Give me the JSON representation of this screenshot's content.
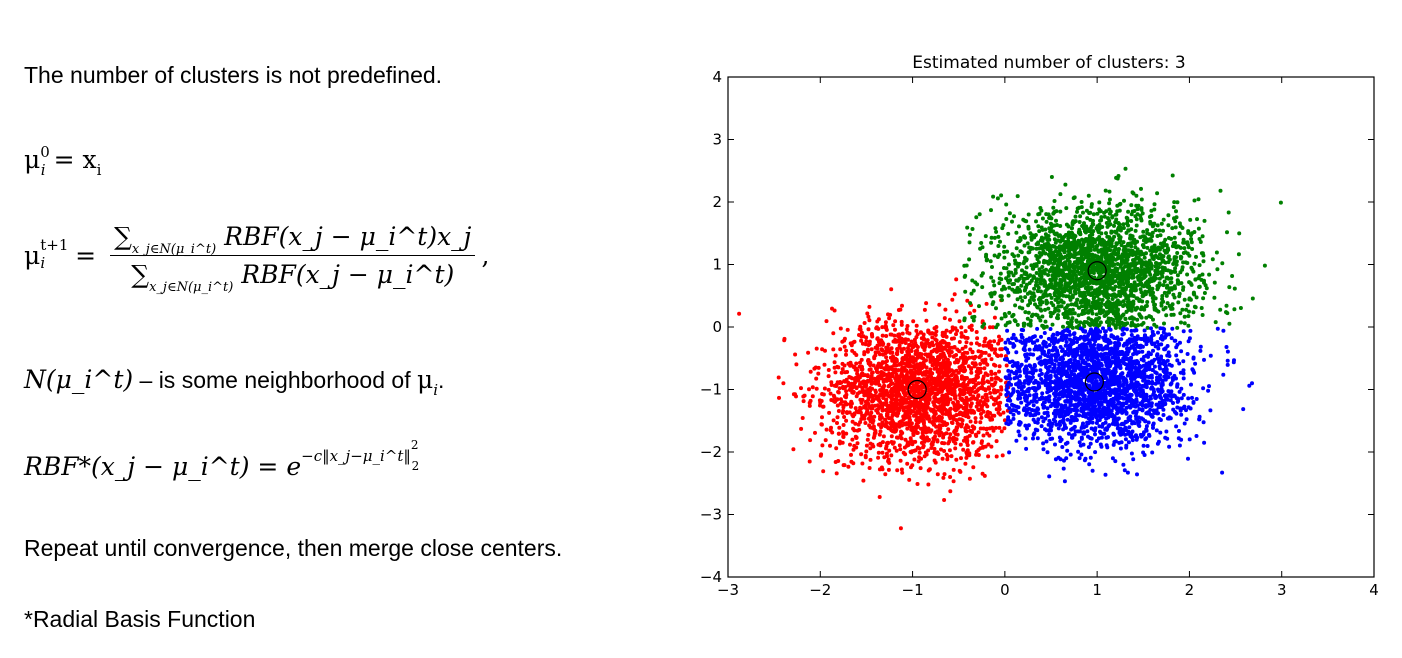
{
  "text": {
    "line1": "The number of clusters is not predefined.",
    "init": {
      "mu": "μ",
      "sub": "i",
      "sup": "0",
      "rhs": "= x",
      "rhs_sub": "i"
    },
    "update": {
      "lhs": "μ",
      "lhs_sub": "i",
      "lhs_sup": "t+1",
      "eq": "=",
      "num_sigma": "∑",
      "num_sum_sub": "x_j∈N(μ_i^t)",
      "num_body": "RBF(x_j − μ_i^t)x_j",
      "den_sigma": "∑",
      "den_sum_sub": "x_j∈N(μ_i^t)",
      "den_body": "RBF(x_j − μ_i^t)",
      "trail": ","
    },
    "neighborhood": {
      "lhs": "N(μ_i^t)",
      "rest": " – is some neighborhood of ",
      "mu": "μ",
      "mu_sub": "i",
      "end": "."
    },
    "rbf": {
      "lhs": "RBF*(x_j − μ_i^t) = e",
      "exponent": "−c‖x_j−μ_i^t‖",
      "norm_sup": "2",
      "norm_sub": "2"
    },
    "repeat": "Repeat until convergence, then merge close centers.",
    "footnote": "*Radial Basis Function"
  },
  "chart_data": {
    "type": "scatter",
    "title": "Estimated number of clusters: 3",
    "xlabel": "",
    "ylabel": "",
    "xlim": [
      -3,
      4
    ],
    "ylim": [
      -4,
      4
    ],
    "x_ticks": [
      -3,
      -2,
      -1,
      0,
      1,
      2,
      3,
      4
    ],
    "y_ticks": [
      -4,
      -3,
      -2,
      -1,
      0,
      1,
      2,
      3,
      4
    ],
    "x_tick_labels": [
      "−3",
      "−2",
      "−1",
      "0",
      "1",
      "2",
      "3",
      "4"
    ],
    "y_tick_labels": [
      "−4",
      "−3",
      "−2",
      "−1",
      "0",
      "1",
      "2",
      "3",
      "4"
    ],
    "grid": false,
    "series": [
      {
        "color": "#ff0000",
        "center": [
          -0.95,
          -1.0
        ],
        "spread": [
          0.5,
          0.55
        ],
        "approx_points": 5000
      },
      {
        "color": "#008000",
        "center": [
          1.0,
          0.9
        ],
        "spread": [
          0.55,
          0.5
        ],
        "approx_points": 5000
      },
      {
        "color": "#0000ff",
        "center": [
          1.0,
          -0.9
        ],
        "spread": [
          0.5,
          0.5
        ],
        "approx_points": 5000
      }
    ],
    "centers": [
      {
        "x": -0.95,
        "y": -1.0
      },
      {
        "x": 1.0,
        "y": 0.9
      },
      {
        "x": 0.97,
        "y": -0.88
      }
    ]
  }
}
